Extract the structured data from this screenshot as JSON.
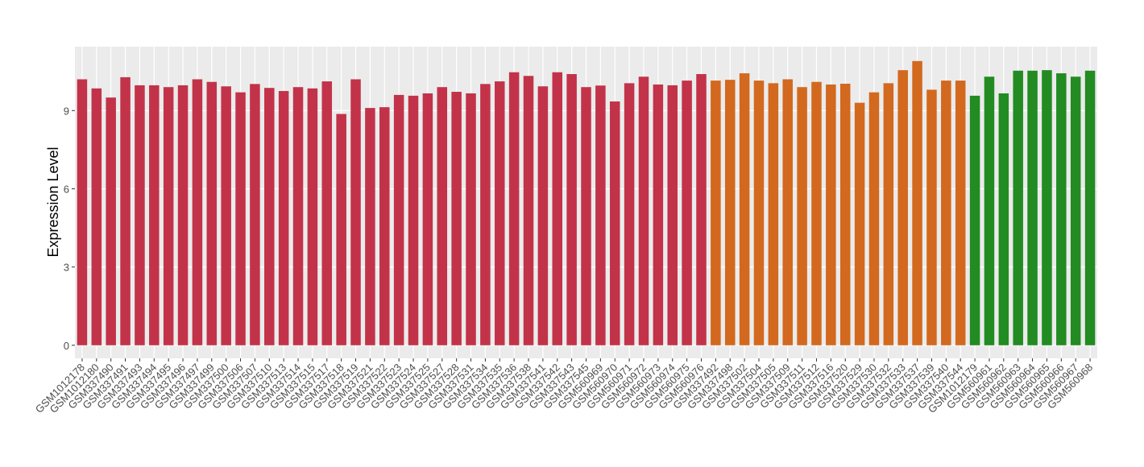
{
  "chart_data": {
    "type": "bar",
    "y_label": "Expression Level",
    "categories": [
      "GSM1012178",
      "GSM1012180",
      "GSM337490",
      "GSM337491",
      "GSM337493",
      "GSM337494",
      "GSM337495",
      "GSM337496",
      "GSM337497",
      "GSM337499",
      "GSM337500",
      "GSM337506",
      "GSM337507",
      "GSM337510",
      "GSM337513",
      "GSM337514",
      "GSM337515",
      "GSM337517",
      "GSM337518",
      "GSM337519",
      "GSM337521",
      "GSM337522",
      "GSM337523",
      "GSM337524",
      "GSM337525",
      "GSM337527",
      "GSM337528",
      "GSM337531",
      "GSM337534",
      "GSM337535",
      "GSM337536",
      "GSM337538",
      "GSM337541",
      "GSM337542",
      "GSM337543",
      "GSM337545",
      "GSM560969",
      "GSM560970",
      "GSM560971",
      "GSM560972",
      "GSM560973",
      "GSM560974",
      "GSM560975",
      "GSM560976",
      "GSM337492",
      "GSM337498",
      "GSM337502",
      "GSM337504",
      "GSM337505",
      "GSM337509",
      "GSM337511",
      "GSM337512",
      "GSM337516",
      "GSM337520",
      "GSM337529",
      "GSM337530",
      "GSM337532",
      "GSM337533",
      "GSM337537",
      "GSM337539",
      "GSM337540",
      "GSM337544",
      "GSM1012179",
      "GSM560961",
      "GSM560962",
      "GSM560963",
      "GSM560964",
      "GSM560965",
      "GSM560966",
      "GSM560967",
      "GSM560968"
    ],
    "values": [
      10.2,
      9.85,
      9.5,
      10.28,
      9.97,
      9.97,
      9.9,
      9.97,
      10.2,
      10.1,
      9.93,
      9.7,
      10.02,
      9.87,
      9.75,
      9.9,
      9.85,
      10.12,
      8.87,
      10.2,
      9.1,
      9.13,
      9.6,
      9.57,
      9.66,
      9.9,
      9.72,
      9.66,
      10.02,
      10.12,
      10.47,
      10.33,
      9.93,
      10.47,
      10.4,
      9.9,
      9.96,
      9.35,
      10.05,
      10.3,
      10.0,
      9.97,
      10.15,
      10.4,
      10.15,
      10.18,
      10.43,
      10.15,
      10.05,
      10.2,
      9.9,
      10.1,
      10.0,
      10.03,
      9.3,
      9.7,
      10.05,
      10.55,
      10.9,
      9.8,
      10.15,
      10.15,
      9.57,
      10.3,
      9.66,
      10.53,
      10.53,
      10.55,
      10.43,
      10.3,
      10.53
    ],
    "colors": [
      "#c23349",
      "#c23349",
      "#c23349",
      "#c23349",
      "#c23349",
      "#c23349",
      "#c23349",
      "#c23349",
      "#c23349",
      "#c23349",
      "#c23349",
      "#c23349",
      "#c23349",
      "#c23349",
      "#c23349",
      "#c23349",
      "#c23349",
      "#c23349",
      "#c23349",
      "#c23349",
      "#c23349",
      "#c23349",
      "#c23349",
      "#c23349",
      "#c23349",
      "#c23349",
      "#c23349",
      "#c23349",
      "#c23349",
      "#c23349",
      "#c23349",
      "#c23349",
      "#c23349",
      "#c23349",
      "#c23349",
      "#c23349",
      "#c23349",
      "#c23349",
      "#c23349",
      "#c23349",
      "#c23349",
      "#c23349",
      "#c23349",
      "#c23349",
      "#d2691e",
      "#d2691e",
      "#d2691e",
      "#d2691e",
      "#d2691e",
      "#d2691e",
      "#d2691e",
      "#d2691e",
      "#d2691e",
      "#d2691e",
      "#d2691e",
      "#d2691e",
      "#d2691e",
      "#d2691e",
      "#d2691e",
      "#d2691e",
      "#d2691e",
      "#d2691e",
      "#228b22",
      "#228b22",
      "#228b22",
      "#228b22",
      "#228b22",
      "#228b22",
      "#228b22",
      "#228b22",
      "#228b22"
    ],
    "ylim": [
      -0.5,
      11.45
    ],
    "yticks": [
      0,
      3,
      6,
      9
    ],
    "grid": true
  }
}
